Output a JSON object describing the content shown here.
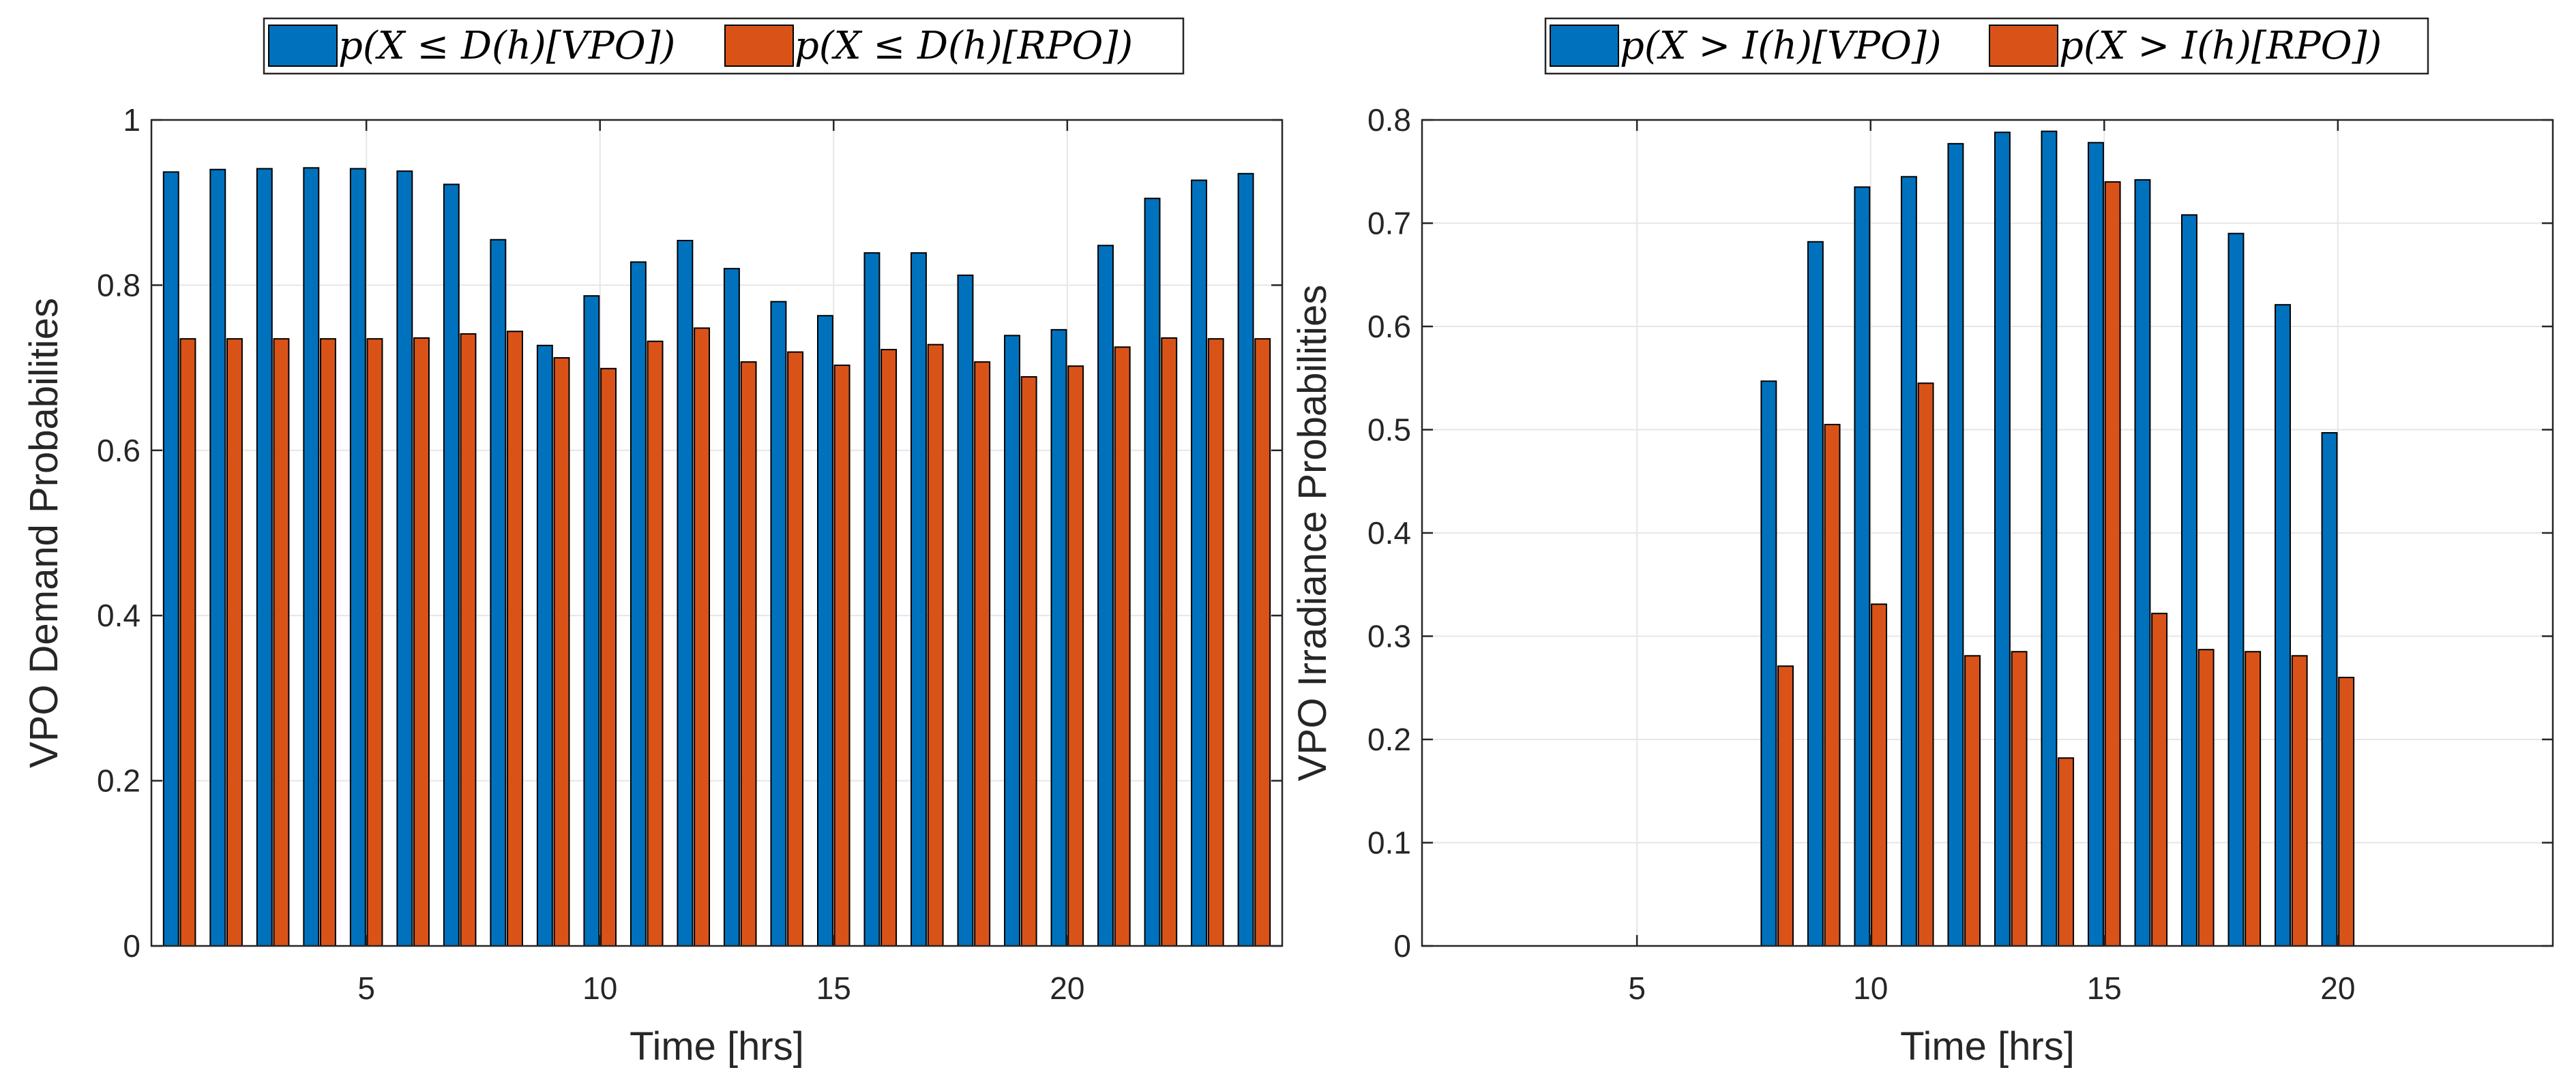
{
  "colors": {
    "vpo": "#0072BD",
    "rpo": "#D95319",
    "grid": "#e6e6e6",
    "axis": "#262626"
  },
  "chart_data": [
    {
      "type": "bar",
      "title": "",
      "xlabel": "Time [hrs]",
      "ylabel": "VPO Demand Probabilities",
      "xlim": [
        0.4,
        24.6
      ],
      "ylim": [
        0,
        1
      ],
      "xticks": [
        5,
        10,
        15,
        20
      ],
      "yticks": [
        0,
        0.2,
        0.4,
        0.6,
        0.8,
        1
      ],
      "ytick_labels": [
        "0",
        "0.2",
        "0.4",
        "0.6",
        "0.8",
        "1"
      ],
      "grid": true,
      "legend_position": "top-center",
      "categories": [
        1,
        2,
        3,
        4,
        5,
        6,
        7,
        8,
        9,
        10,
        11,
        12,
        13,
        14,
        15,
        16,
        17,
        18,
        19,
        20,
        21,
        22,
        23,
        24
      ],
      "series": [
        {
          "name": "p(X ≤ D(h)[VPO])",
          "color": "#0072BD",
          "values": [
            0.937,
            0.94,
            0.941,
            0.942,
            0.941,
            0.938,
            0.922,
            0.855,
            0.727,
            0.787,
            0.828,
            0.854,
            0.82,
            0.78,
            0.763,
            0.839,
            0.839,
            0.812,
            0.739,
            0.746,
            0.848,
            0.905,
            0.927,
            0.935
          ]
        },
        {
          "name": "p(X ≤ D(h)[RPO])",
          "color": "#D95319",
          "values": [
            0.735,
            0.735,
            0.735,
            0.735,
            0.735,
            0.736,
            0.741,
            0.744,
            0.712,
            0.699,
            0.732,
            0.748,
            0.707,
            0.719,
            0.703,
            0.722,
            0.728,
            0.707,
            0.689,
            0.702,
            0.725,
            0.736,
            0.735,
            0.735
          ]
        }
      ]
    },
    {
      "type": "bar",
      "title": "",
      "xlabel": "Time [hrs]",
      "ylabel": "VPO Irradiance Probabilities",
      "xlim": [
        0.4,
        24.6
      ],
      "ylim": [
        0,
        0.8
      ],
      "xticks": [
        5,
        10,
        15,
        20
      ],
      "yticks": [
        0,
        0.1,
        0.2,
        0.3,
        0.4,
        0.5,
        0.6,
        0.7,
        0.8
      ],
      "ytick_labels": [
        "0",
        "0.1",
        "0.2",
        "0.3",
        "0.4",
        "0.5",
        "0.6",
        "0.7",
        "0.8"
      ],
      "grid": true,
      "legend_position": "top-center",
      "categories": [
        1,
        2,
        3,
        4,
        5,
        6,
        7,
        8,
        9,
        10,
        11,
        12,
        13,
        14,
        15,
        16,
        17,
        18,
        19,
        20,
        21,
        22,
        23,
        24
      ],
      "series": [
        {
          "name": "p(X > I(h)[VPO])",
          "color": "#0072BD",
          "values": [
            0,
            0,
            0,
            0,
            0,
            0,
            0,
            0.547,
            0.682,
            0.735,
            0.745,
            0.777,
            0.788,
            0.789,
            0.778,
            0.742,
            0.708,
            0.69,
            0.621,
            0.497,
            0,
            0,
            0,
            0
          ]
        },
        {
          "name": "p(X > I(h)[RPO])",
          "color": "#D95319",
          "values": [
            0,
            0,
            0,
            0,
            0,
            0,
            0,
            0.271,
            0.505,
            0.331,
            0.545,
            0.281,
            0.285,
            0.182,
            0.74,
            0.322,
            0.287,
            0.285,
            0.281,
            0.26,
            0,
            0,
            0,
            0
          ]
        }
      ]
    }
  ]
}
